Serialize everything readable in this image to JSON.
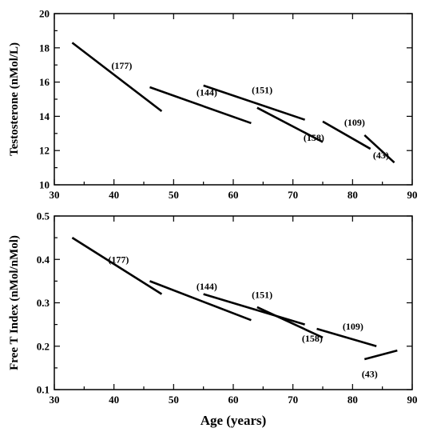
{
  "chart_data": [
    {
      "type": "line",
      "ylabel": "Testosterone (nMol/L)",
      "xlim": [
        30,
        90
      ],
      "ylim": [
        10,
        20
      ],
      "xticks": [
        "30",
        "40",
        "50",
        "60",
        "70",
        "80",
        "90"
      ],
      "yticks": [
        "10",
        "12",
        "14",
        "16",
        "18",
        "20"
      ],
      "grid": false,
      "series": [
        {
          "name": "(177)",
          "x": [
            33,
            48
          ],
          "y": [
            18.3,
            14.3
          ]
        },
        {
          "name": "(144)",
          "x": [
            46,
            63
          ],
          "y": [
            15.7,
            13.6
          ]
        },
        {
          "name": "(151)",
          "x": [
            55,
            72
          ],
          "y": [
            15.8,
            13.8
          ]
        },
        {
          "name": "(158)",
          "x": [
            64,
            75
          ],
          "y": [
            14.5,
            12.5
          ]
        },
        {
          "name": "(109)",
          "x": [
            75,
            83
          ],
          "y": [
            13.7,
            12.1
          ]
        },
        {
          "name": "(43)",
          "x": [
            82,
            87
          ],
          "y": [
            12.9,
            11.3
          ]
        }
      ]
    },
    {
      "type": "line",
      "xlabel": "Age (years)",
      "ylabel": "Free T Index (nMol/nMol)",
      "xlim": [
        30,
        90
      ],
      "ylim": [
        0.1,
        0.5
      ],
      "xticks": [
        "30",
        "40",
        "50",
        "60",
        "70",
        "80",
        "90"
      ],
      "yticks": [
        "0.1",
        "0.2",
        "0.3",
        "0.4",
        "0.5"
      ],
      "grid": false,
      "series": [
        {
          "name": "(177)",
          "x": [
            33,
            48
          ],
          "y": [
            0.45,
            0.32
          ]
        },
        {
          "name": "(144)",
          "x": [
            46,
            63
          ],
          "y": [
            0.35,
            0.26
          ]
        },
        {
          "name": "(151)",
          "x": [
            55,
            72
          ],
          "y": [
            0.32,
            0.25
          ]
        },
        {
          "name": "(158)",
          "x": [
            64,
            75
          ],
          "y": [
            0.29,
            0.22
          ]
        },
        {
          "name": "(109)",
          "x": [
            74,
            84
          ],
          "y": [
            0.24,
            0.2
          ]
        },
        {
          "name": "(43)",
          "x": [
            82,
            87.5
          ],
          "y": [
            0.17,
            0.19
          ]
        }
      ]
    }
  ]
}
